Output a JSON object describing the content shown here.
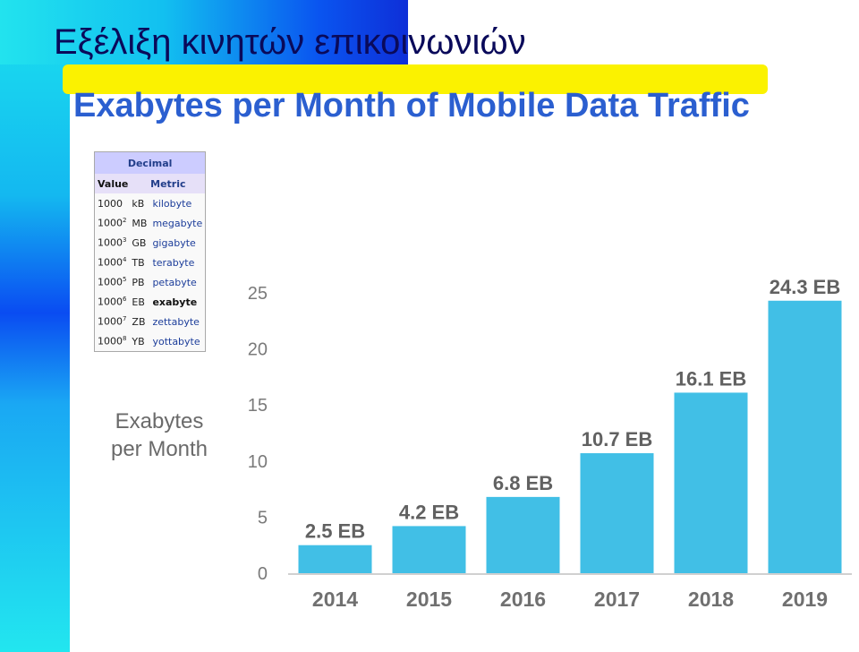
{
  "slide": {
    "title_greek": "Εξέλιξη κινητών επικοινωνιών",
    "title_english": "Exabytes per Month of Mobile Data Traffic"
  },
  "unit_table": {
    "header": "Decimal",
    "col_value": "Value",
    "col_metric": "Metric",
    "rows": [
      {
        "base": "1000",
        "exp": "",
        "symbol": "kB",
        "name": "kilobyte"
      },
      {
        "base": "1000",
        "exp": "2",
        "symbol": "MB",
        "name": "megabyte"
      },
      {
        "base": "1000",
        "exp": "3",
        "symbol": "GB",
        "name": "gigabyte"
      },
      {
        "base": "1000",
        "exp": "4",
        "symbol": "TB",
        "name": "terabyte"
      },
      {
        "base": "1000",
        "exp": "5",
        "symbol": "PB",
        "name": "petabyte"
      },
      {
        "base": "1000",
        "exp": "6",
        "symbol": "EB",
        "name": "exabyte"
      },
      {
        "base": "1000",
        "exp": "7",
        "symbol": "ZB",
        "name": "zettabyte"
      },
      {
        "base": "1000",
        "exp": "8",
        "symbol": "YB",
        "name": "yottabyte"
      }
    ]
  },
  "colors": {
    "bar": "#41bfe6",
    "axis": "#d0d0d0"
  },
  "chart_data": {
    "type": "bar",
    "title": "",
    "ylabel": "Exabytes per Month",
    "xlabel": "",
    "categories": [
      "2014",
      "2015",
      "2016",
      "2017",
      "2018",
      "2019"
    ],
    "values": [
      2.5,
      4.2,
      6.8,
      10.7,
      16.1,
      24.3
    ],
    "data_labels": [
      "2.5 EB",
      "4.2 EB",
      "6.8 EB",
      "10.7 EB",
      "16.1 EB",
      "24.3 EB"
    ],
    "ylim": [
      0,
      25
    ],
    "yticks": [
      "0",
      "5",
      "10",
      "15",
      "20",
      "25"
    ],
    "grid": false,
    "legend": "none"
  }
}
